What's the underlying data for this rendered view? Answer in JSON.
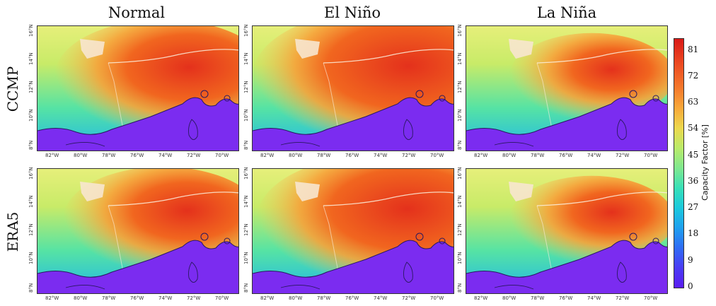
{
  "columns": [
    "Normal",
    "El Niño",
    "La Niña"
  ],
  "rows": [
    "CCMP",
    "ERA5"
  ],
  "lat_ticks": [
    "8°N",
    "10°N",
    "12°N",
    "14°N",
    "16°N"
  ],
  "lon_ticks": [
    "82°W",
    "80°W",
    "78°W",
    "76°W",
    "74°W",
    "72°W",
    "70°W"
  ],
  "colorbar": {
    "label": "Capacity Factor [%]",
    "ticks": [
      "81",
      "72",
      "63",
      "54",
      "45",
      "36",
      "27",
      "18",
      "9",
      "0"
    ],
    "colormap": "rainbow",
    "range": [
      0,
      85
    ]
  },
  "colors": {
    "land": "#7b2cf0",
    "high": "#e83a20",
    "low": "#2fd1cf"
  },
  "chart_data": {
    "type": "heatmap",
    "panels": [
      {
        "row": "CCMP",
        "column": "Normal",
        "peak_capacity_factor": 78
      },
      {
        "row": "CCMP",
        "column": "El Niño",
        "peak_capacity_factor": 82
      },
      {
        "row": "CCMP",
        "column": "La Niña",
        "peak_capacity_factor": 72
      },
      {
        "row": "ERA5",
        "column": "Normal",
        "peak_capacity_factor": 76
      },
      {
        "row": "ERA5",
        "column": "El Niño",
        "peak_capacity_factor": 81
      },
      {
        "row": "ERA5",
        "column": "La Niña",
        "peak_capacity_factor": 72
      }
    ],
    "xlabel": "",
    "ylabel": "",
    "zlim": [
      0,
      85
    ]
  }
}
